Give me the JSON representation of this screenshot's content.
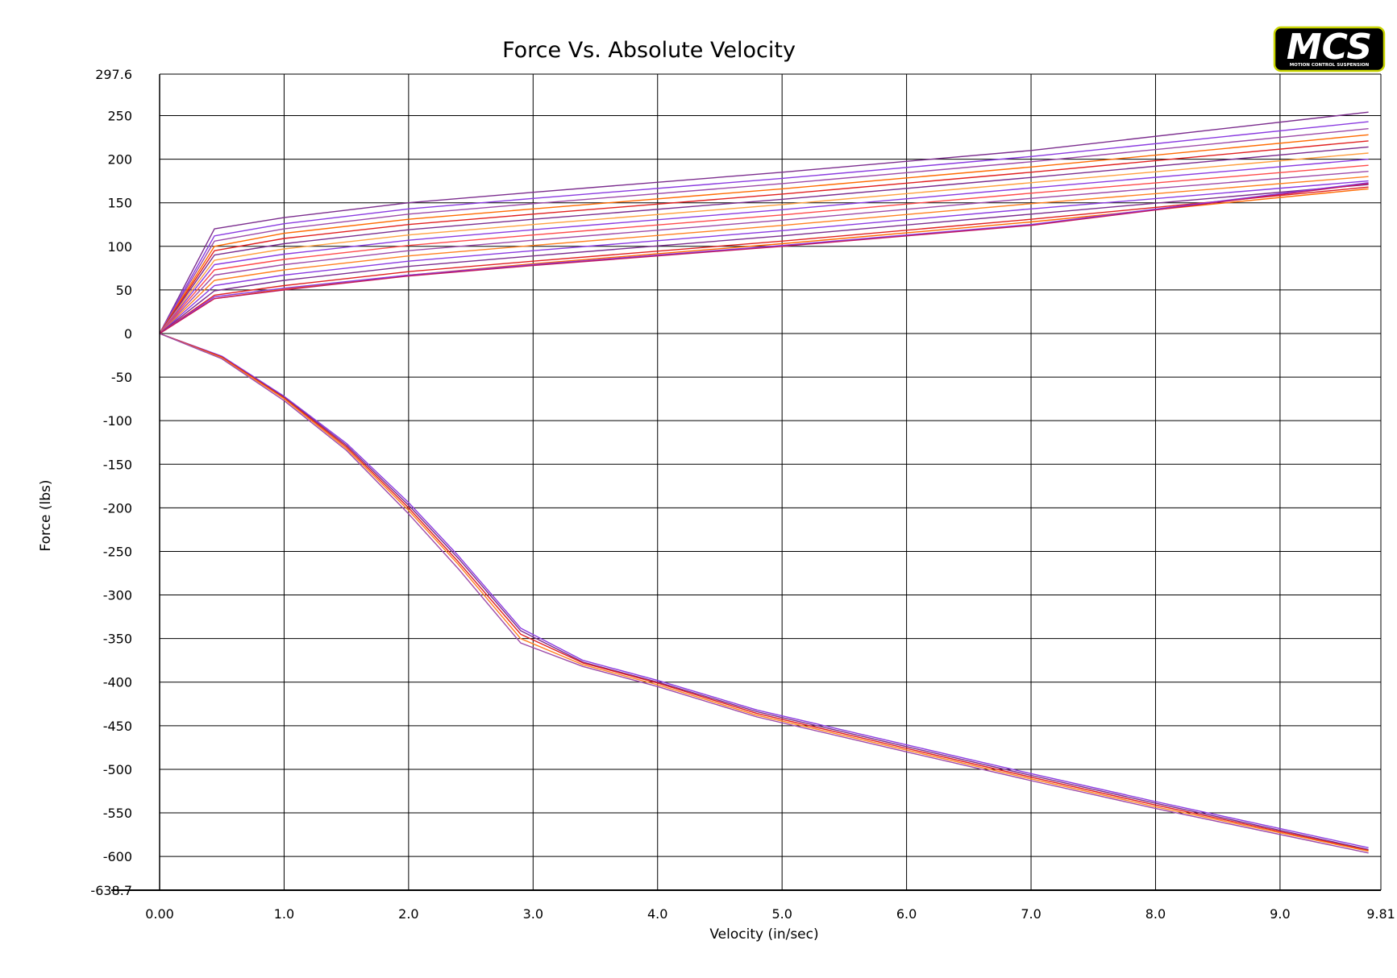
{
  "logo": {
    "brand": "MCS",
    "tagline": "MOTION CONTROL SUSPENSION",
    "border_color": "#c8d400"
  },
  "chart_data": {
    "type": "line",
    "title": "Force Vs. Absolute Velocity",
    "xlabel": "Velocity (in/sec)",
    "ylabel": "Force (lbs)",
    "xlim": [
      0,
      9.81
    ],
    "ylim": [
      -638.7,
      297.6
    ],
    "x_ticks": [
      0,
      1,
      2,
      3,
      4,
      5,
      6,
      7,
      8,
      9,
      9.81
    ],
    "x_tick_labels": [
      "0.00",
      "1.0",
      "2.0",
      "3.0",
      "4.0",
      "5.0",
      "6.0",
      "7.0",
      "8.0",
      "9.0",
      "9.81"
    ],
    "y_ticks": [
      297.6,
      250,
      200,
      150,
      100,
      50,
      0,
      -50,
      -100,
      -150,
      -200,
      -250,
      -300,
      -350,
      -400,
      -450,
      -500,
      -550,
      -600,
      -638.7
    ],
    "y_tick_labels": [
      "297.6",
      "250",
      "200",
      "150",
      "100",
      "50",
      "0",
      "-50",
      "-100",
      "-150",
      "-200",
      "-250",
      "-300",
      "-350",
      "-400",
      "-450",
      "-500",
      "-550",
      "-600",
      "-638.7"
    ],
    "grid": true,
    "legend": "none",
    "series": [
      {
        "color": "#7b2d8e",
        "x": [
          0,
          0.44,
          1.0,
          2.0,
          3.0,
          5.0,
          7.0,
          9.71
        ],
        "y": [
          0,
          120,
          133,
          150,
          162,
          185,
          210,
          254
        ]
      },
      {
        "color": "#8a3be0",
        "x": [
          0,
          0.44,
          1.0,
          2.0,
          3.0,
          5.0,
          7.0,
          9.71
        ],
        "y": [
          0,
          112,
          126,
          143,
          155,
          178,
          203,
          243
        ]
      },
      {
        "color": "#9d4aa8",
        "x": [
          0,
          0.44,
          1.0,
          2.0,
          3.0,
          5.0,
          7.0,
          9.71
        ],
        "y": [
          0,
          106,
          120,
          137,
          149,
          172,
          197,
          235
        ]
      },
      {
        "color": "#ff6a00",
        "x": [
          0,
          0.44,
          1.0,
          2.0,
          3.0,
          5.0,
          7.0,
          9.71
        ],
        "y": [
          0,
          100,
          115,
          131,
          143,
          166,
          191,
          228
        ]
      },
      {
        "color": "#e02020",
        "x": [
          0,
          0.44,
          1.0,
          2.0,
          3.0,
          5.0,
          7.0,
          9.71
        ],
        "y": [
          0,
          95,
          109,
          125,
          137,
          160,
          185,
          221
        ]
      },
      {
        "color": "#7b2d8e",
        "x": [
          0,
          0.44,
          1.0,
          2.0,
          3.0,
          5.0,
          7.0,
          9.71
        ],
        "y": [
          0,
          90,
          103,
          119,
          131,
          154,
          179,
          214
        ]
      },
      {
        "color": "#ffa040",
        "x": [
          0,
          0.44,
          1.0,
          2.0,
          3.0,
          5.0,
          7.0,
          9.71
        ],
        "y": [
          0,
          84,
          97,
          113,
          125,
          148,
          173,
          207
        ]
      },
      {
        "color": "#8a3be0",
        "x": [
          0,
          0.44,
          1.0,
          2.0,
          3.0,
          5.0,
          7.0,
          9.71
        ],
        "y": [
          0,
          79,
          91,
          107,
          119,
          142,
          167,
          200
        ]
      },
      {
        "color": "#ff4a4a",
        "x": [
          0,
          0.44,
          1.0,
          2.0,
          3.0,
          5.0,
          7.0,
          9.71
        ],
        "y": [
          0,
          73,
          85,
          101,
          113,
          136,
          161,
          193
        ]
      },
      {
        "color": "#9d4aa8",
        "x": [
          0,
          0.44,
          1.0,
          2.0,
          3.0,
          5.0,
          7.0,
          9.71
        ],
        "y": [
          0,
          67,
          79,
          95,
          107,
          130,
          155,
          186
        ]
      },
      {
        "color": "#ff8020",
        "x": [
          0,
          0.44,
          1.0,
          2.0,
          3.0,
          5.0,
          7.0,
          9.71
        ],
        "y": [
          0,
          61,
          73,
          89,
          101,
          124,
          149,
          180
        ]
      },
      {
        "color": "#8a3be0",
        "x": [
          0,
          0.44,
          1.0,
          2.0,
          3.0,
          5.0,
          7.0,
          9.71
        ],
        "y": [
          0,
          55,
          67,
          83,
          95,
          118,
          143,
          175
        ]
      },
      {
        "color": "#7b2d8e",
        "x": [
          0,
          0.44,
          1.0,
          2.0,
          3.0,
          5.0,
          7.0,
          9.71
        ],
        "y": [
          0,
          49,
          61,
          77,
          89,
          112,
          137,
          171
        ]
      },
      {
        "color": "#e02020",
        "x": [
          0,
          0.44,
          1.0,
          2.0,
          3.0,
          5.0,
          7.0,
          9.71
        ],
        "y": [
          0,
          44,
          55,
          71,
          83,
          106,
          131,
          168
        ]
      },
      {
        "color": "#ff6a00",
        "x": [
          0,
          0.44,
          1.0,
          2.0,
          3.0,
          5.0,
          7.0,
          9.71
        ],
        "y": [
          0,
          40,
          51,
          67,
          80,
          103,
          128,
          166
        ]
      },
      {
        "color": "#8a3be0",
        "x": [
          0,
          0.44,
          1.0,
          2.0,
          3.0,
          5.0,
          7.0,
          9.71
        ],
        "y": [
          0,
          42,
          52,
          67,
          79,
          101,
          125,
          173
        ]
      },
      {
        "color": "#c01860",
        "x": [
          0,
          0.44,
          1.0,
          2.0,
          3.0,
          5.0,
          7.0,
          9.71
        ],
        "y": [
          0,
          40,
          50,
          66,
          78,
          100,
          124,
          172
        ]
      },
      {
        "color": "#8a3be0",
        "x": [
          0,
          0.5,
          1.0,
          1.5,
          2.0,
          2.4,
          2.9,
          3.4,
          4.0,
          4.8,
          6.0,
          7.0,
          8.0,
          9.71
        ],
        "y": [
          0,
          -26,
          -72,
          -126,
          -194,
          -255,
          -338,
          -375,
          -398,
          -432,
          -472,
          -505,
          -537,
          -590
        ]
      },
      {
        "color": "#7b2d8e",
        "x": [
          0,
          0.5,
          1.0,
          1.5,
          2.0,
          2.4,
          2.9,
          3.4,
          4.0,
          4.8,
          6.0,
          7.0,
          8.0,
          9.71
        ],
        "y": [
          0,
          -27,
          -73,
          -128,
          -197,
          -258,
          -341,
          -377,
          -400,
          -434,
          -474,
          -507,
          -539,
          -592
        ]
      },
      {
        "color": "#e02020",
        "x": [
          0,
          0.5,
          1.0,
          1.5,
          2.0,
          2.4,
          2.9,
          3.4,
          4.0,
          4.8,
          6.0,
          7.0,
          8.0,
          9.71
        ],
        "y": [
          0,
          -27,
          -74,
          -130,
          -200,
          -262,
          -345,
          -378,
          -401,
          -436,
          -476,
          -509,
          -541,
          -593
        ]
      },
      {
        "color": "#ff8020",
        "x": [
          0,
          0.5,
          1.0,
          1.5,
          2.0,
          2.4,
          2.9,
          3.4,
          4.0,
          4.8,
          6.0,
          7.0,
          8.0,
          9.71
        ],
        "y": [
          0,
          -28,
          -75,
          -132,
          -203,
          -265,
          -350,
          -380,
          -403,
          -438,
          -478,
          -511,
          -543,
          -594
        ]
      },
      {
        "color": "#9d4aa8",
        "x": [
          0,
          0.5,
          1.0,
          1.5,
          2.0,
          2.4,
          2.9,
          3.4,
          4.0,
          4.8,
          6.0,
          7.0,
          8.0,
          9.71
        ],
        "y": [
          0,
          -29,
          -77,
          -134,
          -207,
          -270,
          -355,
          -382,
          -405,
          -440,
          -480,
          -513,
          -545,
          -596
        ]
      }
    ]
  }
}
